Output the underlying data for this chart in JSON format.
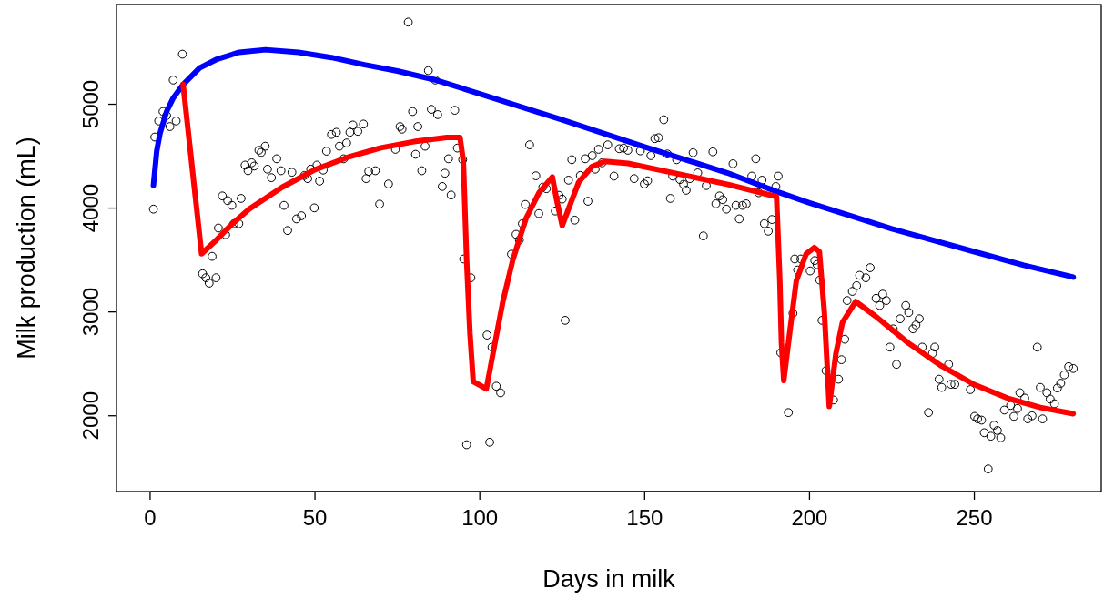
{
  "chart_data": {
    "type": "scatter",
    "xlabel": "Days in milk",
    "ylabel": "Milk production (mL)",
    "xlim": [
      -10.2,
      288.5
    ],
    "ylim": [
      1270,
      5960
    ],
    "xticks": [
      0,
      50,
      100,
      150,
      200,
      250
    ],
    "yticks": [
      2000,
      3000,
      4000,
      5000
    ],
    "grid": false,
    "series": [
      {
        "color": "#000000",
        "marker": "circle",
        "x": [
          1.0,
          1.4,
          2.6,
          3.9,
          5.0,
          6.0,
          7.0,
          7.9,
          9.8,
          15.9,
          16.9,
          17.9,
          18.8,
          20.0,
          20.7,
          21.9,
          22.9,
          23.5,
          24.8,
          25.4,
          26.9,
          27.6,
          28.8,
          29.7,
          30.8,
          31.6,
          33.0,
          33.7,
          34.9,
          35.6,
          36.8,
          38.4,
          39.7,
          40.6,
          41.7,
          43.0,
          44.4,
          45.9,
          46.8,
          47.8,
          48.7,
          49.8,
          50.6,
          51.4,
          52.5,
          53.5,
          55.0,
          56.5,
          57.4,
          58.7,
          59.6,
          60.6,
          61.5,
          63.0,
          64.7,
          65.5,
          66.3,
          68.3,
          69.6,
          72.3,
          74.4,
          75.8,
          76.4,
          78.3,
          79.6,
          80.5,
          81.2,
          82.4,
          83.4,
          84.4,
          85.3,
          86.5,
          87.2,
          88.6,
          89.4,
          90.5,
          91.3,
          92.4,
          93.2,
          94.8,
          95.1,
          96.0,
          97.3,
          102.2,
          103.0,
          103.7,
          105.0,
          106.3,
          109.6,
          111.0,
          112.0,
          112.9,
          113.8,
          115.1,
          117.0,
          117.9,
          119.1,
          120.2,
          122.9,
          124.0,
          125.0,
          125.9,
          126.9,
          127.9,
          128.8,
          130.5,
          132.0,
          132.8,
          134.1,
          135.0,
          136.0,
          137.1,
          138.8,
          140.7,
          142.3,
          143.6,
          144.9,
          146.8,
          148.7,
          149.9,
          150.9,
          151.9,
          153.1,
          154.2,
          155.8,
          156.9,
          157.8,
          158.5,
          159.7,
          160.7,
          161.8,
          162.6,
          163.7,
          164.7,
          166.1,
          167.8,
          168.7,
          170.7,
          171.6,
          172.7,
          173.7,
          174.8,
          176.8,
          177.7,
          178.7,
          179.7,
          180.8,
          182.5,
          183.7,
          184.6,
          185.6,
          186.3,
          187.5,
          188.6,
          189.8,
          190.5,
          191.3,
          193.6,
          195.0,
          195.5,
          196.4,
          197.4,
          200.2,
          201.6,
          202.3,
          203.1,
          203.8,
          205.0,
          207.3,
          208.8,
          209.7,
          210.7,
          211.4,
          213.0,
          214.3,
          215.2,
          217.1,
          218.4,
          220.2,
          221.3,
          222.2,
          223.3,
          224.4,
          225.4,
          226.4,
          227.5,
          229.2,
          230.1,
          231.4,
          232.3,
          233.3,
          234.2,
          236.1,
          237.3,
          238.0,
          239.3,
          240.1,
          242.2,
          242.9,
          244.1,
          248.8,
          250.1,
          251.0,
          252.2,
          253.0,
          254.2,
          255.0,
          256.0,
          257.0,
          258.0,
          259.1,
          261.0,
          262.0,
          263.1,
          263.8,
          265.3,
          266.2,
          267.5,
          269.1,
          270.0,
          270.7,
          272.0,
          273.0,
          274.3,
          275.2,
          276.2,
          277.3,
          278.6,
          280.0
        ],
        "values": [
          3990,
          4684,
          4839,
          4930,
          4891,
          4785,
          5233,
          4839,
          5482,
          3368,
          3329,
          3277,
          3535,
          3329,
          3808,
          4117,
          3744,
          4072,
          4026,
          3850,
          3850,
          4093,
          4414,
          4360,
          4436,
          4405,
          4557,
          4536,
          4596,
          4375,
          4293,
          4475,
          4360,
          4026,
          3784,
          4345,
          3896,
          3926,
          4314,
          4284,
          4375,
          4002,
          4414,
          4260,
          4366,
          4548,
          4709,
          4730,
          4596,
          4475,
          4627,
          4730,
          4800,
          4739,
          4809,
          4284,
          4354,
          4360,
          4038,
          4232,
          4566,
          4785,
          4760,
          5791,
          4930,
          4518,
          4785,
          4360,
          4596,
          5324,
          4951,
          5233,
          4900,
          4208,
          4336,
          4475,
          4126,
          4942,
          4578,
          4466,
          3510,
          1721,
          3329,
          2777,
          1745,
          2661,
          2285,
          2221,
          3556,
          3747,
          3692,
          3850,
          4035,
          4609,
          4311,
          3947,
          4202,
          4187,
          3972,
          4123,
          4087,
          2919,
          4269,
          4466,
          3884,
          4314,
          4475,
          4066,
          4505,
          4375,
          4566,
          4436,
          4609,
          4308,
          4572,
          4578,
          4557,
          4284,
          4551,
          4232,
          4263,
          4505,
          4669,
          4678,
          4851,
          4521,
          4093,
          4308,
          4466,
          4275,
          4229,
          4172,
          4284,
          4533,
          4339,
          3732,
          4217,
          4542,
          4041,
          4117,
          4081,
          3990,
          4427,
          4026,
          3896,
          4026,
          4041,
          4308,
          4475,
          4148,
          4269,
          3850,
          3778,
          3890,
          4208,
          4308,
          2607,
          2031,
          2986,
          3510,
          3404,
          3510,
          3395,
          3495,
          3456,
          3307,
          2919,
          2434,
          2152,
          2352,
          2540,
          2737,
          3110,
          3198,
          3253,
          3353,
          3329,
          3426,
          3131,
          3062,
          3171,
          3110,
          2661,
          2837,
          2495,
          2934,
          3062,
          2995,
          2837,
          2874,
          2934,
          2661,
          2031,
          2601,
          2661,
          2352,
          2273,
          2495,
          2303,
          2303,
          2252,
          1994,
          1970,
          1958,
          1837,
          1488,
          1803,
          1909,
          1858,
          1788,
          2055,
          2100,
          1994,
          2070,
          2222,
          2170,
          1970,
          2000,
          2661,
          2273,
          1970,
          2222,
          2161,
          2116,
          2267,
          2313,
          2394,
          2473,
          2455
        ]
      },
      {
        "type": "line",
        "color": "#0000ff",
        "x": [
          1,
          2,
          3,
          5,
          7,
          10,
          15,
          20,
          27,
          35,
          45,
          55,
          65,
          75,
          87,
          100,
          125,
          150,
          175,
          190,
          200,
          225,
          250,
          265,
          280
        ],
        "values": [
          4220,
          4550,
          4720,
          4930,
          5060,
          5190,
          5350,
          5430,
          5500,
          5525,
          5500,
          5450,
          5380,
          5320,
          5230,
          5100,
          4850,
          4590,
          4340,
          4160,
          4050,
          3800,
          3580,
          3450,
          3335
        ]
      },
      {
        "type": "line",
        "color": "#ff0000",
        "x": [
          10,
          15.6,
          20,
          25,
          30,
          40,
          50,
          60,
          70,
          80,
          90,
          94,
          95,
          96,
          97,
          98,
          102,
          104,
          107,
          110,
          114,
          118,
          122,
          123.5,
          125,
          127,
          130,
          134,
          138,
          145,
          160,
          175,
          190,
          191,
          191.5,
          192.2,
          194,
          196,
          199,
          201.5,
          203,
          204.5,
          205.5,
          206,
          208,
          210,
          214,
          220,
          230,
          240,
          250,
          260,
          270,
          280
        ],
        "values": [
          5190,
          3560,
          3690,
          3850,
          3990,
          4200,
          4370,
          4490,
          4580,
          4640,
          4680,
          4680,
          4450,
          3500,
          2800,
          2330,
          2260,
          2600,
          3100,
          3500,
          3900,
          4150,
          4300,
          4050,
          3830,
          4000,
          4250,
          4400,
          4450,
          4430,
          4330,
          4230,
          4110,
          3300,
          2700,
          2340,
          2800,
          3300,
          3560,
          3620,
          3580,
          3000,
          2400,
          2090,
          2600,
          2900,
          3100,
          2960,
          2700,
          2480,
          2300,
          2170,
          2080,
          2020
        ]
      }
    ]
  }
}
